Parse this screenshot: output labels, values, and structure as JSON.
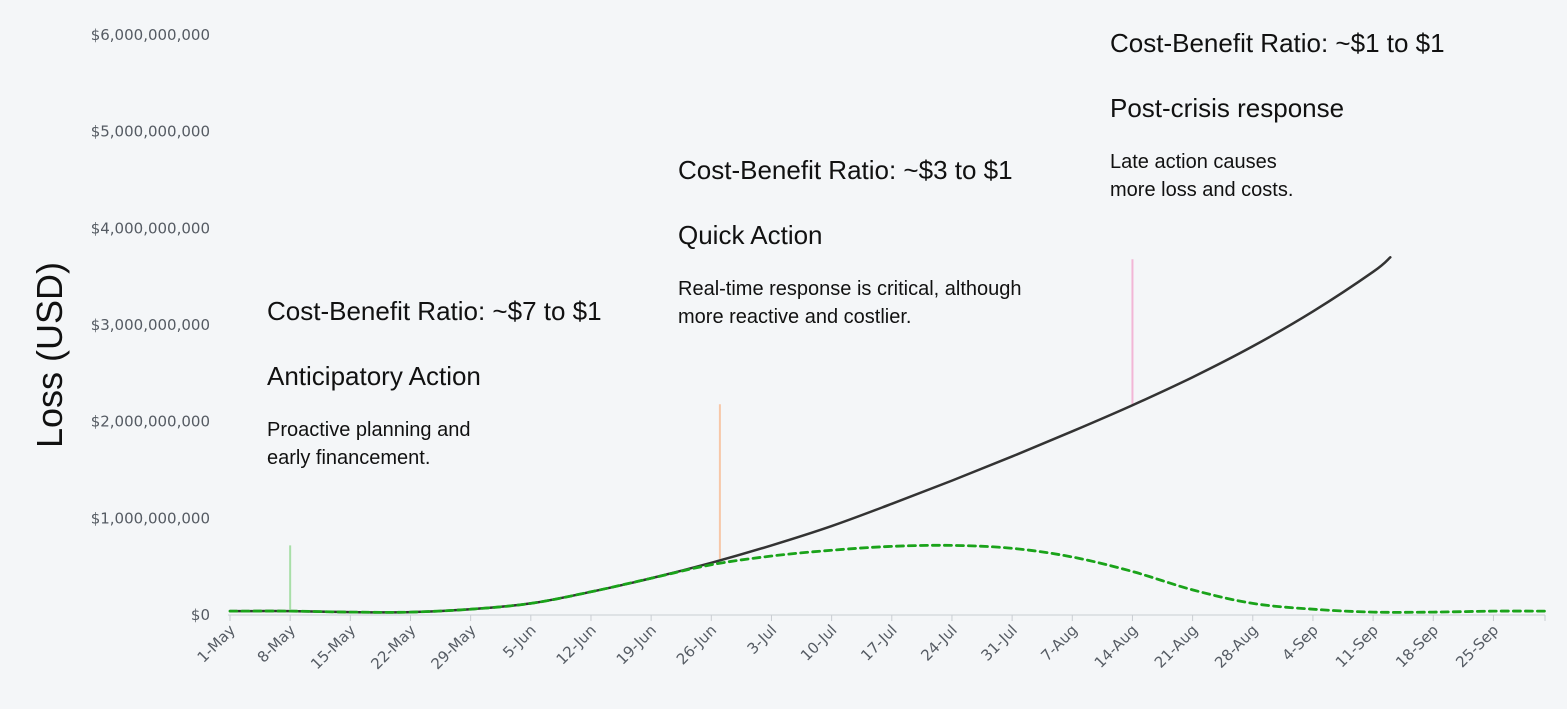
{
  "chart_data": {
    "type": "line",
    "title": "",
    "xlabel": "",
    "ylabel": "Loss (USD)",
    "x_ticks": [
      "1-May",
      "8-May",
      "15-May",
      "22-May",
      "29-May",
      "5-Jun",
      "12-Jun",
      "19-Jun",
      "26-Jun",
      "3-Jul",
      "10-Jul",
      "17-Jul",
      "24-Jul",
      "31-Jul",
      "7-Aug",
      "14-Aug",
      "21-Aug",
      "28-Aug",
      "4-Sep",
      "11-Sep",
      "18-Sep",
      "25-Sep"
    ],
    "y_ticks": [
      "$0",
      "$1,000,000,000",
      "$2,000,000,000",
      "$3,000,000,000",
      "$4,000,000,000",
      "$5,000,000,000",
      "$6,000,000,000"
    ],
    "xlim": [
      "2023-05-01",
      "2023-10-01"
    ],
    "ylim": [
      0,
      6000000000
    ],
    "grid": false,
    "series": [
      {
        "color": "#333333",
        "style": "solid",
        "points": [
          [
            "2023-05-01",
            40000000
          ],
          [
            "2023-05-08",
            40000000
          ],
          [
            "2023-05-15",
            30000000
          ],
          [
            "2023-05-22",
            30000000
          ],
          [
            "2023-05-29",
            60000000
          ],
          [
            "2023-06-05",
            120000000
          ],
          [
            "2023-06-12",
            240000000
          ],
          [
            "2023-06-19",
            380000000
          ],
          [
            "2023-06-26",
            540000000
          ],
          [
            "2023-07-03",
            720000000
          ],
          [
            "2023-07-10",
            920000000
          ],
          [
            "2023-07-17",
            1150000000
          ],
          [
            "2023-07-24",
            1390000000
          ],
          [
            "2023-07-31",
            1640000000
          ],
          [
            "2023-08-07",
            1900000000
          ],
          [
            "2023-08-14",
            2170000000
          ],
          [
            "2023-08-21",
            2460000000
          ],
          [
            "2023-08-28",
            2780000000
          ],
          [
            "2023-09-04",
            3140000000
          ],
          [
            "2023-09-11",
            3550000000
          ],
          [
            "2023-09-13",
            3700000000
          ]
        ]
      },
      {
        "color": "#1aa31a",
        "style": "dashed",
        "points": [
          [
            "2023-05-01",
            40000000
          ],
          [
            "2023-05-08",
            40000000
          ],
          [
            "2023-05-15",
            30000000
          ],
          [
            "2023-05-22",
            30000000
          ],
          [
            "2023-05-29",
            60000000
          ],
          [
            "2023-06-05",
            120000000
          ],
          [
            "2023-06-12",
            240000000
          ],
          [
            "2023-06-19",
            380000000
          ],
          [
            "2023-06-26",
            520000000
          ],
          [
            "2023-07-03",
            610000000
          ],
          [
            "2023-07-10",
            670000000
          ],
          [
            "2023-07-17",
            710000000
          ],
          [
            "2023-07-24",
            720000000
          ],
          [
            "2023-07-31",
            690000000
          ],
          [
            "2023-08-07",
            600000000
          ],
          [
            "2023-08-14",
            450000000
          ],
          [
            "2023-08-21",
            260000000
          ],
          [
            "2023-08-28",
            120000000
          ],
          [
            "2023-09-04",
            60000000
          ],
          [
            "2023-09-11",
            30000000
          ],
          [
            "2023-09-18",
            30000000
          ],
          [
            "2023-09-25",
            40000000
          ],
          [
            "2023-10-01",
            40000000
          ]
        ]
      }
    ],
    "markers": [
      {
        "date": "2023-05-08",
        "from": 60000000,
        "to": 720000000,
        "color": "#a8dfa8"
      },
      {
        "date": "2023-06-27",
        "from": 580000000,
        "to": 2180000000,
        "color": "#f7c7a8"
      },
      {
        "date": "2023-08-14",
        "from": 2180000000,
        "to": 3680000000,
        "color": "#f2b6d6"
      }
    ],
    "annotations": [
      {
        "ratio": "Cost-Benefit Ratio: ~$7 to $1",
        "phase": "Anticipatory Action",
        "desc": [
          "Proactive planning and",
          "early financement."
        ]
      },
      {
        "ratio": "Cost-Benefit Ratio: ~$3 to $1",
        "phase": "Quick Action",
        "desc": [
          "Real-time response is critical, although",
          "more reactive and costlier."
        ]
      },
      {
        "ratio": "Cost-Benefit Ratio: ~$1 to $1",
        "phase": "Post-crisis response",
        "desc": [
          "Late action causes",
          "more loss and costs."
        ]
      }
    ]
  }
}
